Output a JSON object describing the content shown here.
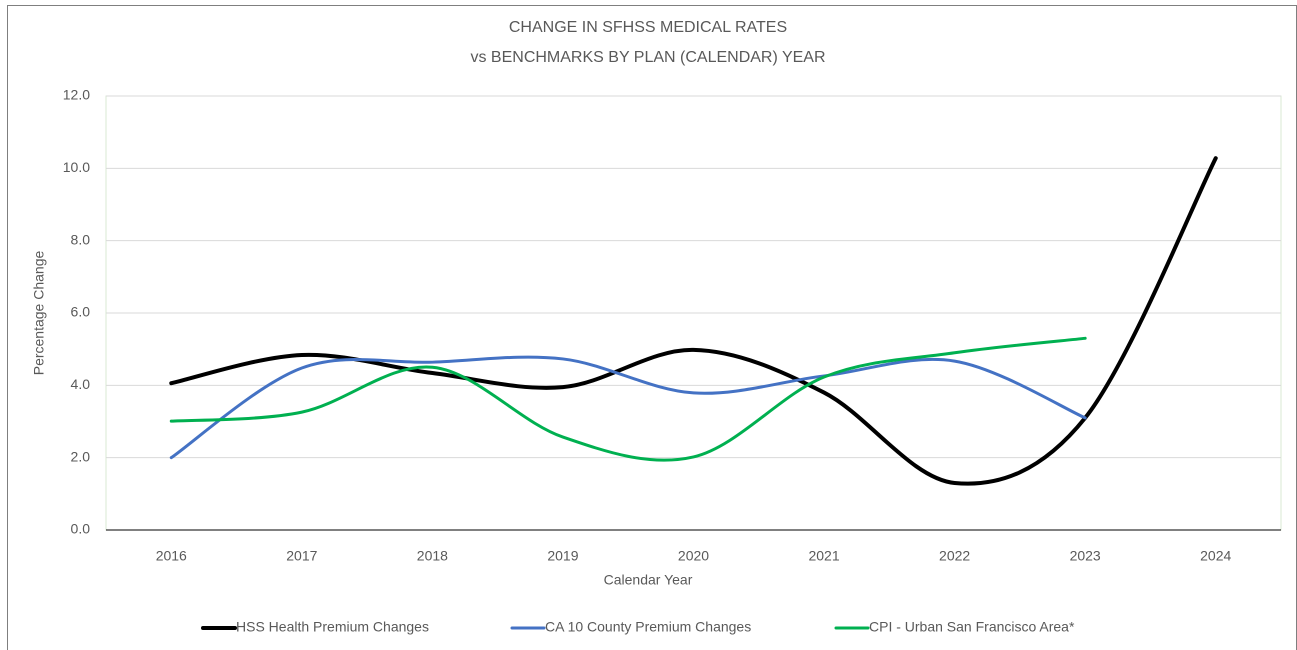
{
  "chart_data": {
    "type": "line",
    "title": [
      "CHANGE IN SFHSS MEDICAL RATES",
      "vs BENCHMARKS BY PLAN (CALENDAR) YEAR"
    ],
    "x_label": "Calendar Year",
    "y_label": "Percentage Change",
    "categories": [
      "2016",
      "2017",
      "2018",
      "2019",
      "2020",
      "2021",
      "2022",
      "2023",
      "2024"
    ],
    "series": [
      {
        "name": "HSS Health Premium Changes",
        "color": "#000000",
        "width": 4,
        "values": [
          4.06,
          4.84,
          4.34,
          3.95,
          4.98,
          3.8,
          1.3,
          3.1,
          10.28
        ]
      },
      {
        "name": "CA 10 County Premium Changes",
        "color": "#4472c4",
        "width": 3,
        "values": [
          2.0,
          4.48,
          4.64,
          4.73,
          3.79,
          4.26,
          4.67,
          3.1,
          null
        ]
      },
      {
        "name": "CPI - Urban San Francisco Area*",
        "color": "#00b050",
        "width": 3,
        "values": [
          3.01,
          3.26,
          4.5,
          2.57,
          2.02,
          4.23,
          4.9,
          5.3,
          null
        ]
      }
    ],
    "ylim": [
      0,
      12
    ],
    "yticks": [
      {
        "value": 0,
        "label": "0.0"
      },
      {
        "value": 2,
        "label": "2.0"
      },
      {
        "value": 4,
        "label": "4.0"
      },
      {
        "value": 6,
        "label": "6.0"
      },
      {
        "value": 8,
        "label": "8.0"
      },
      {
        "value": 10,
        "label": "10.0"
      },
      {
        "value": 12,
        "label": "12.0"
      }
    ],
    "grid": true,
    "smooth": true,
    "legend": "bottom"
  }
}
